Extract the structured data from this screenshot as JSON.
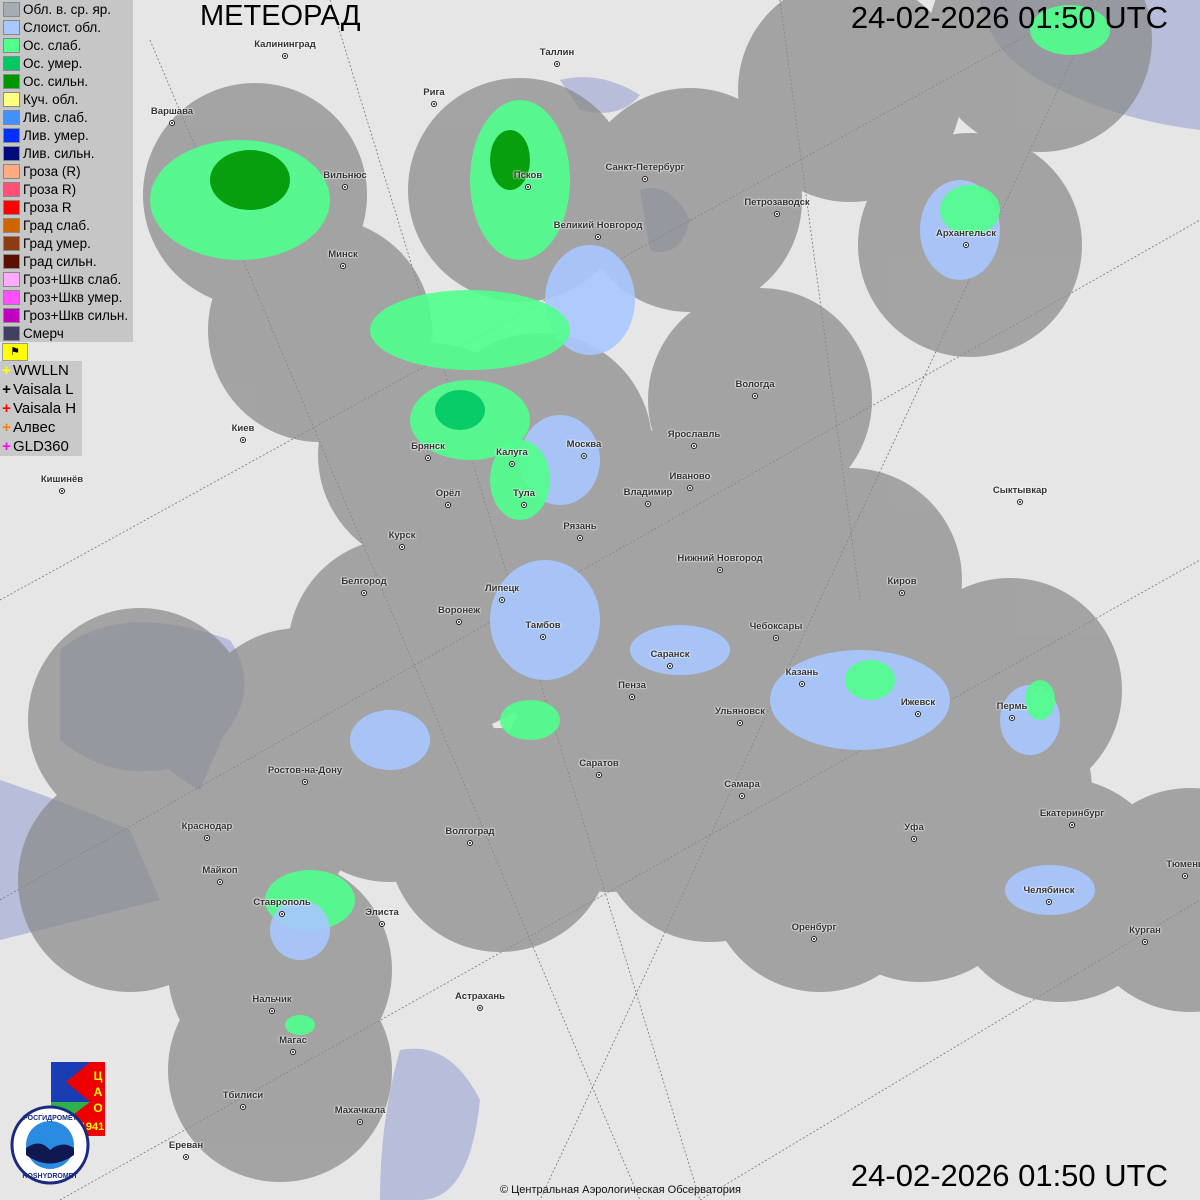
{
  "header": {
    "title": "МЕТЕОРАД",
    "timestamp": "24-02-2026  01:50 UTC"
  },
  "footer": {
    "timestamp": "24-02-2026  01:50 UTC",
    "copyright": "© Центральная Аэрологическая Обсерватория"
  },
  "legend": {
    "items": [
      {
        "label": "Обл. в. ср. яр.",
        "color": "#a4acb4"
      },
      {
        "label": "Слоист. обл.",
        "color": "#a8c8ff"
      },
      {
        "label": "Ос. слаб.",
        "color": "#50ff8c"
      },
      {
        "label": "Ос. умер.",
        "color": "#00c864"
      },
      {
        "label": "Ос. сильн.",
        "color": "#009600"
      },
      {
        "label": "Куч. обл.",
        "color": "#ffff80"
      },
      {
        "label": "Лив. слаб.",
        "color": "#4090ff"
      },
      {
        "label": "Лив. умер.",
        "color": "#0030ff"
      },
      {
        "label": "Лив. сильн.",
        "color": "#000a78"
      },
      {
        "label": "Гроза (R)",
        "color": "#ffaa80"
      },
      {
        "label": "Гроза R)",
        "color": "#ff5078"
      },
      {
        "label": "Гроза R",
        "color": "#ff0000"
      },
      {
        "label": "Град слаб.",
        "color": "#d06400"
      },
      {
        "label": "Град умер.",
        "color": "#8c3c10"
      },
      {
        "label": "Град сильн.",
        "color": "#5a1000"
      },
      {
        "label": "Гроз+Шкв слаб.",
        "color": "#ffaaff"
      },
      {
        "label": "Гроз+Шкв умер.",
        "color": "#ff50ff"
      },
      {
        "label": "Гроз+Шкв сильн.",
        "color": "#c000c0"
      },
      {
        "label": "Смерч",
        "color": "#404060"
      }
    ],
    "toggle_icon": "flag-icon",
    "lightning": [
      {
        "label": "WWLLN",
        "color": "#ffff00"
      },
      {
        "label": "Vaisala L",
        "color": "#000000"
      },
      {
        "label": "Vaisala H",
        "color": "#ff0000"
      },
      {
        "label": "Алвес",
        "color": "#ff8000"
      },
      {
        "label": "GLD360",
        "color": "#ff00ff"
      }
    ]
  },
  "logos": {
    "cao": "ЦАО 1941",
    "roshydromet": "РОСГИДРОМЕТ ROSHYDROMET"
  },
  "cities": [
    "Калининград",
    "Таллин",
    "Рига",
    "Варшава",
    "Санкт-Петербург",
    "Псков",
    "Вильнюс",
    "Петрозаводск",
    "Архангельск",
    "Великий Новгород",
    "Минск",
    "Вологда",
    "Киев",
    "Москва",
    "Ярославль",
    "Брянск",
    "Калуга",
    "Иваново",
    "Кишинёв",
    "Орёл",
    "Тула",
    "Владимир",
    "Сыктывкар",
    "Рязань",
    "Курск",
    "Нижний Новгород",
    "Киров",
    "Белгород",
    "Липецк",
    "Воронеж",
    "Тамбов",
    "Чебоксары",
    "Саранск",
    "Пенза",
    "Казань",
    "Ижевск",
    "Пермь",
    "Ульяновск",
    "Ростов-на-Дону",
    "Саратов",
    "Самара",
    "Екатеринбург",
    "Краснодар",
    "Уфа",
    "Волгоград",
    "Майкоп",
    "Тюмень",
    "Челябинск",
    "Ставрополь",
    "Элиста",
    "Оренбург",
    "Курган",
    "Нальчик",
    "Астрахань",
    "Магас",
    "Тбилиси",
    "Махачкала",
    "Ереван"
  ]
}
